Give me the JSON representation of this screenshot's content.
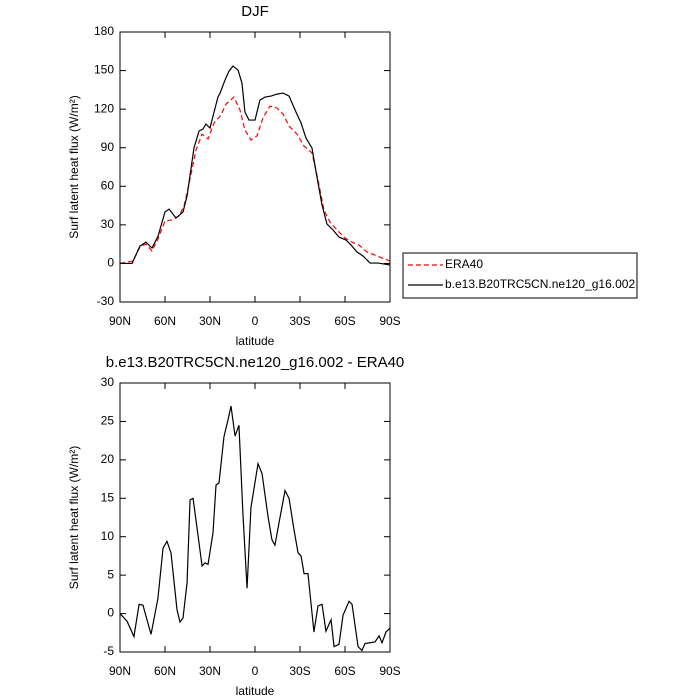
{
  "chart_data": [
    {
      "type": "line",
      "title": "DJF",
      "xlabel": "latitude",
      "ylabel": "Surf latent heat flux (W/m²)",
      "xlim": [
        90,
        -90
      ],
      "xticks": [
        {
          "value": 90,
          "label": "90N"
        },
        {
          "value": 60,
          "label": "60N"
        },
        {
          "value": 30,
          "label": "30N"
        },
        0,
        {
          "value": -30,
          "label": "30S"
        },
        {
          "value": -60,
          "label": "60S"
        },
        {
          "value": -90,
          "label": "90S"
        }
      ],
      "ylim": [
        -30,
        180
      ],
      "yticks": [
        -30,
        0,
        30,
        60,
        90,
        120,
        150,
        180
      ],
      "legend": "outside-right",
      "series": [
        {
          "name": "ERA40",
          "color": "#ff0000",
          "linestyle": "dashed",
          "x": [
            90,
            81.3,
            76.7,
            72.7,
            68.7,
            64.7,
            60,
            55.3,
            50.7,
            47.3,
            44,
            39.3,
            35.3,
            31.3,
            27.3,
            22.7,
            19.3,
            14,
            10,
            6.7,
            2.7,
            -1.3,
            -5.3,
            -10,
            -14.7,
            -18.7,
            -22.7,
            -28,
            -32.7,
            -38,
            -42,
            -46,
            -50,
            -54.7,
            -60,
            -64.7,
            -69.3,
            -74.7,
            -80,
            -84.7,
            -90
          ],
          "values": [
            0,
            1.9,
            12.8,
            15.1,
            9.6,
            19,
            33,
            33.8,
            36.9,
            44.7,
            61.8,
            88.2,
            100.6,
            96.8,
            109.2,
            115.4,
            124,
            129.4,
            119.3,
            103.8,
            96,
            99.1,
            113.1,
            122.4,
            120.8,
            116.2,
            106.9,
            100.6,
            91.3,
            85.9,
            64.9,
            41.5,
            32.2,
            26,
            19.8,
            16.6,
            14.3,
            8.9,
            6.5,
            4.2,
            1.9
          ]
        },
        {
          "name": "b.e13.B20TRC5CN.ne120_g16.002",
          "color": "#000000",
          "linestyle": "solid",
          "x": [
            90,
            82,
            76.7,
            72.7,
            68.7,
            64.7,
            60,
            57.3,
            52.7,
            48,
            45.3,
            40.7,
            37.3,
            34.7,
            32.7,
            30,
            27.3,
            24.7,
            23.3,
            20,
            17.3,
            14.7,
            11.3,
            8.7,
            6.7,
            4,
            0,
            -3.3,
            -6.7,
            -10.7,
            -14.7,
            -18.7,
            -22.7,
            -26.7,
            -30.7,
            -34,
            -38,
            -41.3,
            -44.7,
            -48,
            -52,
            -56,
            -60.7,
            -64,
            -68,
            -72,
            -76.7,
            -82,
            -90
          ],
          "values": [
            0,
            0,
            13.5,
            16.6,
            12,
            21,
            40,
            42.3,
            35.3,
            40,
            52.4,
            89.7,
            103,
            104.5,
            108.4,
            105.3,
            117.7,
            129.4,
            132.5,
            142.6,
            149.6,
            153.5,
            150.4,
            140.3,
            117.7,
            111.5,
            111.5,
            127,
            129.4,
            130.2,
            131.7,
            132.5,
            130.2,
            119.3,
            109.2,
            97.5,
            89.7,
            67.2,
            45.4,
            30.6,
            26,
            20.5,
            18.2,
            14.3,
            8.9,
            5.8,
            0.3,
            0.3,
            -1.2
          ]
        }
      ]
    },
    {
      "type": "line",
      "title": "b.e13.B20TRC5CN.ne120_g16.002 - ERA40",
      "xlabel": "latitude",
      "ylabel": "Surf latent heat flux (W/m²)",
      "xlim": [
        90,
        -90
      ],
      "xticks": [
        {
          "value": 90,
          "label": "90N"
        },
        {
          "value": 60,
          "label": "60N"
        },
        {
          "value": 30,
          "label": "30N"
        },
        0,
        {
          "value": -30,
          "label": "30S"
        },
        {
          "value": -60,
          "label": "60S"
        },
        {
          "value": -90,
          "label": "90S"
        }
      ],
      "ylim": [
        -5,
        30
      ],
      "yticks": [
        -5,
        0,
        5,
        10,
        15,
        20,
        25,
        30
      ],
      "series": [
        {
          "color": "#000000",
          "linestyle": "solid",
          "x": [
            90,
            85.3,
            80.7,
            77.3,
            74.7,
            69.3,
            64.7,
            61.3,
            58.7,
            56,
            52,
            50,
            48,
            45.3,
            43.3,
            41.3,
            38,
            35.3,
            33.3,
            31.3,
            28,
            26,
            24,
            20.7,
            18,
            16,
            13.3,
            10.7,
            8,
            5.3,
            2.7,
            -2,
            -4.7,
            -8.7,
            -11.3,
            -13.3,
            -16,
            -20,
            -22.7,
            -26,
            -28.7,
            -30.7,
            -32.7,
            -35.3,
            -39.3,
            -42,
            -44.7,
            -47.3,
            -50.7,
            -52.7,
            -56,
            -58.7,
            -62.7,
            -64.7,
            -68.7,
            -71.3,
            -73.3,
            -76.7,
            -80,
            -82.7,
            -84.7,
            -87.3,
            -90
          ],
          "values": [
            0,
            -1,
            -3,
            1.2,
            1.1,
            -2.7,
            2,
            8.5,
            9.4,
            7.9,
            0.5,
            -1.1,
            -0.6,
            4,
            14.8,
            15,
            10.2,
            6.2,
            6.6,
            6.4,
            10.5,
            16.7,
            17,
            23,
            25.2,
            27,
            23.1,
            24.5,
            12.8,
            3.3,
            13.8,
            19.5,
            18.2,
            12.6,
            9.6,
            8.9,
            11.8,
            16,
            15,
            10.9,
            7.9,
            7.5,
            5.2,
            5.2,
            -2.4,
            1,
            1.2,
            -2.3,
            -0.8,
            -4.3,
            -4,
            -0.2,
            1.6,
            1.2,
            -4.3,
            -4.8,
            -3.9,
            -3.8,
            -3.7,
            -2.9,
            -3.8,
            -2.4,
            -1.9
          ]
        }
      ]
    }
  ]
}
